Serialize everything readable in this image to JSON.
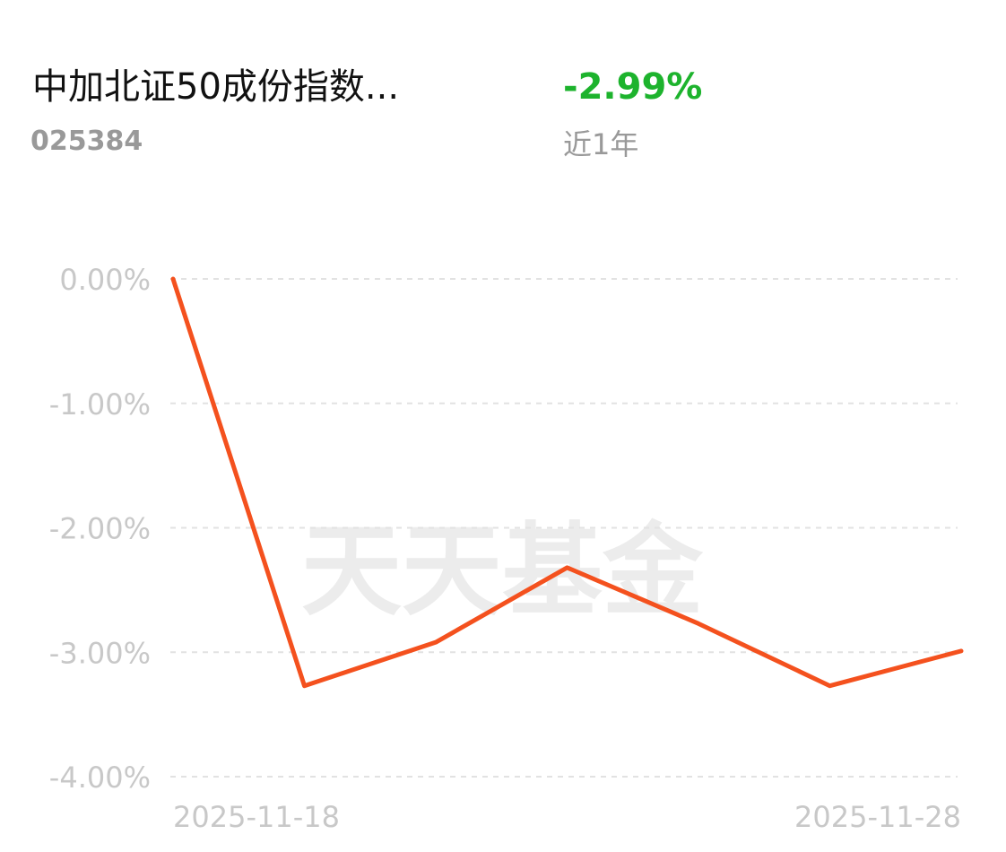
{
  "header": {
    "title": "中加北证50成份指数...",
    "code": "025384",
    "return": "-2.99%",
    "period": "近1年"
  },
  "chart_data": {
    "type": "line",
    "watermark": "天天基金",
    "categories": [
      "2025-11-18",
      null,
      null,
      null,
      null,
      null,
      "2025-11-28"
    ],
    "values": [
      0,
      -3.27,
      -2.92,
      -2.32,
      -2.77,
      -3.27,
      -2.99
    ],
    "color": "#f4511e",
    "ylim": [
      -4,
      0
    ],
    "yticks": [
      {
        "value": 0,
        "label": "0.00%"
      },
      {
        "value": -1,
        "label": "-1.00%"
      },
      {
        "value": -2,
        "label": "-2.00%"
      },
      {
        "value": -3,
        "label": "-3.00%"
      },
      {
        "value": -4,
        "label": "-4.00%"
      }
    ],
    "grid": true
  }
}
